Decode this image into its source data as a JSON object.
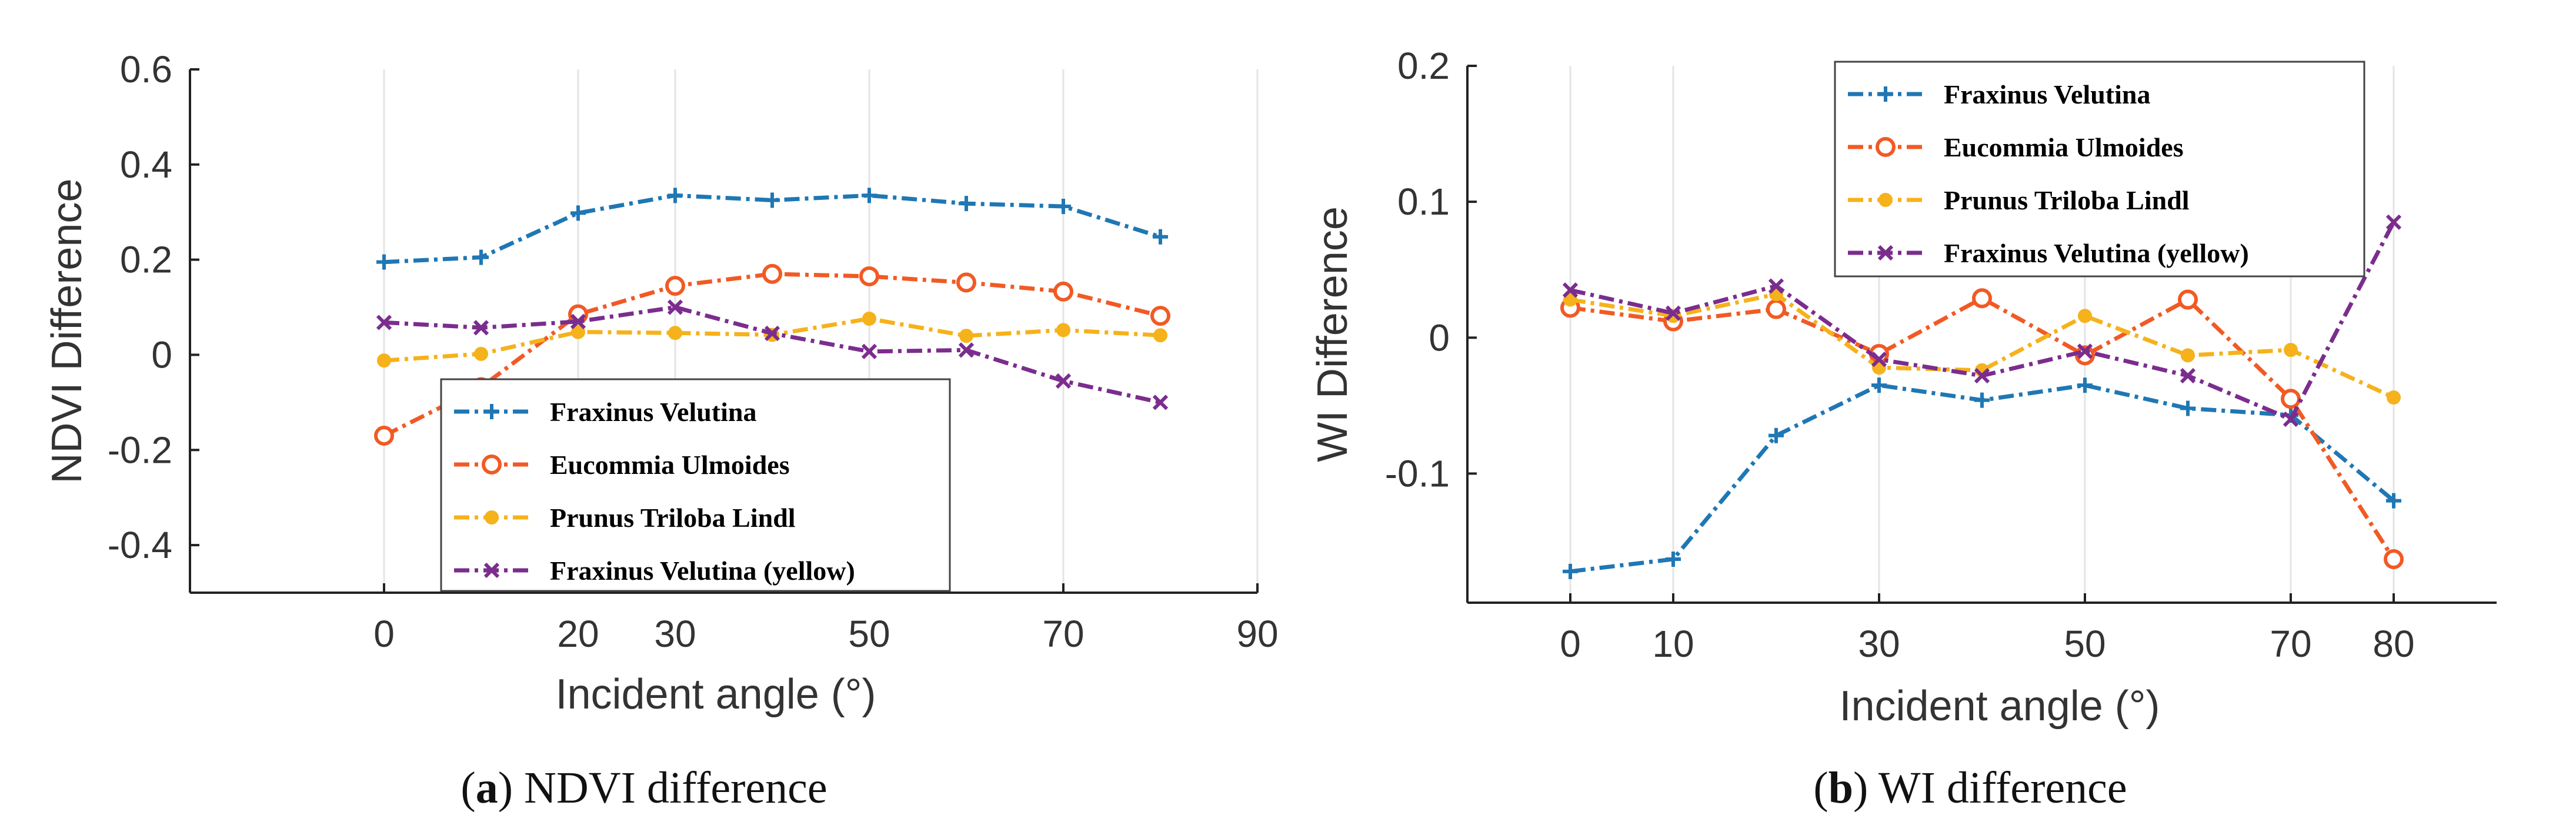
{
  "chart_data": [
    {
      "type": "line",
      "caption": {
        "letter": "a",
        "text": "NDVI difference"
      },
      "xlabel": "Incident angle (°)",
      "ylabel": "NDVI Difference",
      "xlim": [
        -20,
        90
      ],
      "ylim": [
        -0.5,
        0.6
      ],
      "xticks": [
        0,
        20,
        30,
        50,
        70,
        90
      ],
      "xtick_labels": [
        "0",
        "20",
        "30",
        "50",
        "70",
        "90"
      ],
      "yticks": [
        -0.4,
        -0.2,
        0,
        0.2,
        0.4,
        0.6
      ],
      "ytick_labels": [
        "-0.4",
        "-0.2",
        "0",
        "0.2",
        "0.4",
        "0.6"
      ],
      "grid": "vertical",
      "legend_position": "lower-center",
      "x": [
        0,
        10,
        20,
        30,
        40,
        50,
        60,
        70,
        80
      ],
      "series": [
        {
          "name": "Fraxinus Velutina",
          "color": "#1f77b4",
          "marker": "plus",
          "values": [
            0.195,
            0.205,
            0.298,
            0.335,
            0.325,
            0.335,
            0.318,
            0.312,
            0.248
          ]
        },
        {
          "name": "Eucommia Ulmoides",
          "color": "#f15a24",
          "marker": "circle",
          "values": [
            -0.17,
            -0.068,
            0.085,
            0.145,
            0.17,
            0.165,
            0.152,
            0.133,
            0.082
          ]
        },
        {
          "name": "Prunus Triloba Lindl",
          "color": "#f5b21b",
          "marker": "dot",
          "values": [
            -0.012,
            0.002,
            0.048,
            0.046,
            0.042,
            0.076,
            0.04,
            0.052,
            0.041
          ]
        },
        {
          "name": "Fraxinus Velutina (yellow)",
          "color": "#7b2d8e",
          "marker": "cross",
          "values": [
            0.068,
            0.057,
            0.07,
            0.1,
            0.045,
            0.007,
            0.01,
            -0.055,
            -0.1
          ]
        }
      ]
    },
    {
      "type": "line",
      "caption": {
        "letter": "b",
        "text": "WI difference"
      },
      "xlabel": "Incident angle (°)",
      "ylabel": "WI Difference",
      "xlim": [
        -10,
        90
      ],
      "ylim": [
        -0.195,
        0.2
      ],
      "xticks": [
        0,
        10,
        30,
        50,
        70,
        80
      ],
      "xtick_labels": [
        "0",
        "10",
        "30",
        "50",
        "70",
        "80"
      ],
      "yticks": [
        -0.1,
        0,
        0.1,
        0.2
      ],
      "ytick_labels": [
        "-0.1",
        "0",
        "0.1",
        "0.2"
      ],
      "grid": "vertical",
      "legend_position": "top-center",
      "x": [
        0,
        10,
        20,
        30,
        40,
        50,
        60,
        70,
        80
      ],
      "series": [
        {
          "name": "Fraxinus Velutina",
          "color": "#1f77b4",
          "marker": "plus",
          "values": [
            -0.172,
            -0.163,
            -0.072,
            -0.035,
            -0.046,
            -0.035,
            -0.052,
            -0.057,
            -0.12
          ]
        },
        {
          "name": "Eucommia Ulmoides",
          "color": "#f15a24",
          "marker": "circle",
          "values": [
            0.022,
            0.012,
            0.021,
            -0.012,
            0.029,
            -0.013,
            0.028,
            -0.045,
            -0.163
          ]
        },
        {
          "name": "Prunus Triloba Lindl",
          "color": "#f5b21b",
          "marker": "dot",
          "values": [
            0.028,
            0.016,
            0.032,
            -0.022,
            -0.024,
            0.016,
            -0.013,
            -0.009,
            -0.044
          ]
        },
        {
          "name": "Fraxinus Velutina (yellow)",
          "color": "#7b2d8e",
          "marker": "cross",
          "values": [
            0.035,
            0.018,
            0.038,
            -0.016,
            -0.028,
            -0.01,
            -0.028,
            -0.06,
            0.085
          ]
        }
      ]
    }
  ]
}
